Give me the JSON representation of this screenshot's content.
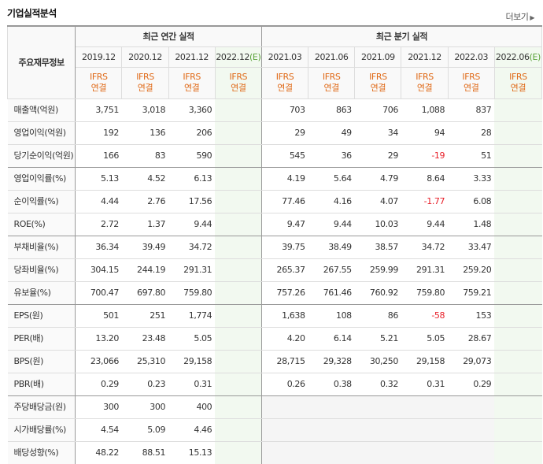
{
  "header": {
    "title": "기업실적분석",
    "more_label": "더보기",
    "more_arrow": "▶"
  },
  "table": {
    "row_header": "주요재무정보",
    "groups": [
      {
        "label": "최근 연간 실적"
      },
      {
        "label": "최근 분기 실적"
      }
    ],
    "periods": [
      {
        "label": "2019.12",
        "est_mark": "",
        "accounting": [
          "IFRS",
          "연결"
        ]
      },
      {
        "label": "2020.12",
        "est_mark": "",
        "accounting": [
          "IFRS",
          "연결"
        ]
      },
      {
        "label": "2021.12",
        "est_mark": "",
        "accounting": [
          "IFRS",
          "연결"
        ]
      },
      {
        "label": "2022.12",
        "est_mark": "(E)",
        "accounting": [
          "IFRS",
          "연결"
        ]
      },
      {
        "label": "2021.03",
        "est_mark": "",
        "accounting": [
          "IFRS",
          "연결"
        ]
      },
      {
        "label": "2021.06",
        "est_mark": "",
        "accounting": [
          "IFRS",
          "연결"
        ]
      },
      {
        "label": "2021.09",
        "est_mark": "",
        "accounting": [
          "IFRS",
          "연결"
        ]
      },
      {
        "label": "2021.12",
        "est_mark": "",
        "accounting": [
          "IFRS",
          "연결"
        ]
      },
      {
        "label": "2022.03",
        "est_mark": "",
        "accounting": [
          "IFRS",
          "연결"
        ]
      },
      {
        "label": "2022.06",
        "est_mark": "(E)",
        "accounting": [
          "IFRS",
          "연결"
        ]
      }
    ],
    "rows": [
      {
        "label": "매출액(억원)",
        "values": [
          "3,751",
          "3,018",
          "3,360",
          "",
          "703",
          "863",
          "706",
          "1,088",
          "837",
          ""
        ]
      },
      {
        "label": "영업이익(억원)",
        "values": [
          "192",
          "136",
          "206",
          "",
          "29",
          "49",
          "34",
          "94",
          "28",
          ""
        ]
      },
      {
        "label": "당기순이익(억원)",
        "values": [
          "166",
          "83",
          "590",
          "",
          "545",
          "36",
          "29",
          "-19",
          "51",
          ""
        ]
      },
      {
        "label": "영업이익률(%)",
        "values": [
          "5.13",
          "4.52",
          "6.13",
          "",
          "4.19",
          "5.64",
          "4.79",
          "8.64",
          "3.33",
          ""
        ]
      },
      {
        "label": "순이익률(%)",
        "values": [
          "4.44",
          "2.76",
          "17.56",
          "",
          "77.46",
          "4.16",
          "4.07",
          "-1.77",
          "6.08",
          ""
        ]
      },
      {
        "label": "ROE(%)",
        "values": [
          "2.72",
          "1.37",
          "9.44",
          "",
          "9.47",
          "9.44",
          "10.03",
          "9.44",
          "1.48",
          ""
        ]
      },
      {
        "label": "부채비율(%)",
        "values": [
          "36.34",
          "39.49",
          "34.72",
          "",
          "39.75",
          "38.49",
          "38.57",
          "34.72",
          "33.47",
          ""
        ]
      },
      {
        "label": "당좌비율(%)",
        "values": [
          "304.15",
          "244.19",
          "291.31",
          "",
          "265.37",
          "267.55",
          "259.99",
          "291.31",
          "259.20",
          ""
        ]
      },
      {
        "label": "유보율(%)",
        "values": [
          "700.47",
          "697.80",
          "759.80",
          "",
          "757.26",
          "761.46",
          "760.92",
          "759.80",
          "759.21",
          ""
        ]
      },
      {
        "label": "EPS(원)",
        "values": [
          "501",
          "251",
          "1,774",
          "",
          "1,638",
          "108",
          "86",
          "-58",
          "153",
          ""
        ]
      },
      {
        "label": "PER(배)",
        "values": [
          "13.20",
          "23.48",
          "5.05",
          "",
          "4.20",
          "6.14",
          "5.21",
          "5.05",
          "28.67",
          ""
        ]
      },
      {
        "label": "BPS(원)",
        "values": [
          "23,066",
          "25,310",
          "29,158",
          "",
          "28,715",
          "29,328",
          "30,250",
          "29,158",
          "29,073",
          ""
        ]
      },
      {
        "label": "PBR(배)",
        "values": [
          "0.29",
          "0.23",
          "0.31",
          "",
          "0.26",
          "0.38",
          "0.32",
          "0.31",
          "0.29",
          ""
        ]
      },
      {
        "label": "주당배당금(원)",
        "values": [
          "300",
          "300",
          "400",
          "",
          "",
          "",
          "",
          "",
          "",
          ""
        ]
      },
      {
        "label": "시가배당률(%)",
        "values": [
          "4.54",
          "5.09",
          "4.46",
          "",
          "",
          "",
          "",
          "",
          "",
          ""
        ]
      },
      {
        "label": "배당성향(%)",
        "values": [
          "48.22",
          "88.51",
          "15.13",
          "",
          "",
          "",
          "",
          "",
          "",
          ""
        ]
      }
    ]
  },
  "colors": {
    "negative": "#e8202a",
    "ifrs": "#e06a18",
    "estimate_mark": "#5aa23a",
    "estimate_bg": "#f2f9f0"
  }
}
